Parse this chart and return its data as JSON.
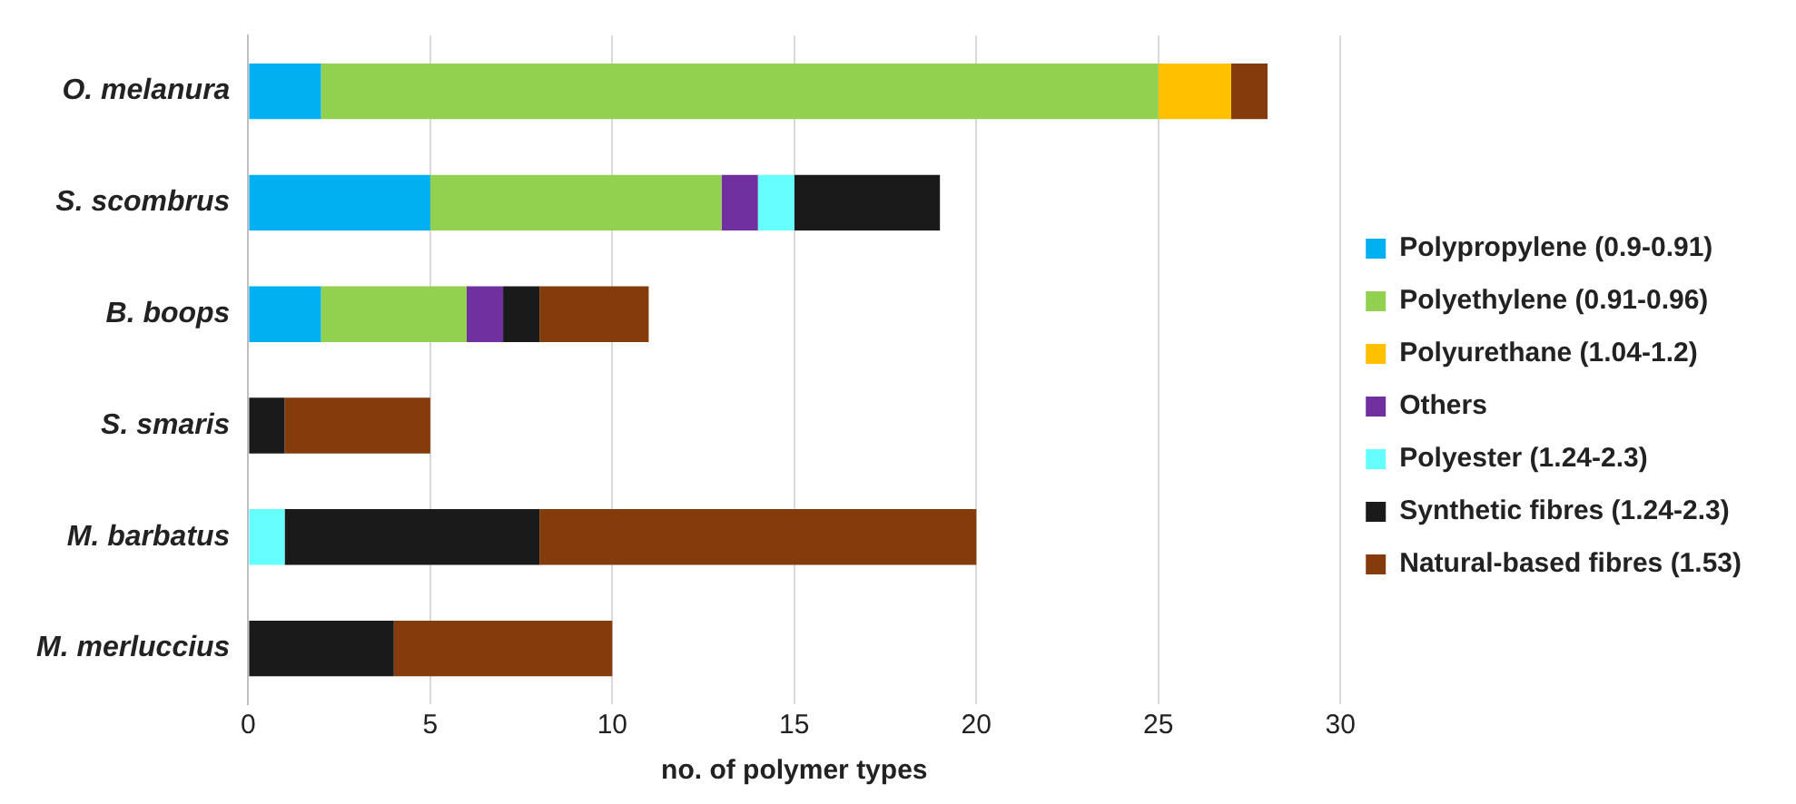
{
  "chart_data": {
    "type": "bar",
    "orientation": "horizontal",
    "stacked": true,
    "xlabel": "no. of polymer types",
    "categories": [
      "O. melanura",
      "S. scombrus",
      "B. boops",
      "S. smaris",
      "M. barbatus",
      "M. merluccius"
    ],
    "series": [
      {
        "name": "Polypropylene (0.9-0.91)",
        "color": "#00b0f0",
        "values": [
          2,
          5,
          2,
          0,
          0,
          0
        ]
      },
      {
        "name": "Polyethylene (0.91-0.96)",
        "color": "#92d050",
        "values": [
          23,
          8,
          4,
          0,
          0,
          0
        ]
      },
      {
        "name": "Polyurethane (1.04-1.2)",
        "color": "#ffc000",
        "values": [
          2,
          0,
          0,
          0,
          0,
          0
        ]
      },
      {
        "name": "Others",
        "color": "#7030a0",
        "values": [
          0,
          1,
          1,
          0,
          0,
          0
        ]
      },
      {
        "name": "Polyester (1.24-2.3)",
        "color": "#66ffff",
        "values": [
          0,
          1,
          0,
          0,
          1,
          0
        ]
      },
      {
        "name": "Synthetic fibres (1.24-2.3)",
        "color": "#1a1a1a",
        "values": [
          0,
          4,
          1,
          1,
          7,
          4
        ]
      },
      {
        "name": "Natural-based fibres (1.53)",
        "color": "#843c0c",
        "values": [
          1,
          0,
          3,
          4,
          12,
          6
        ]
      }
    ],
    "xlim": [
      0,
      30
    ],
    "xticks": [
      0,
      5,
      10,
      15,
      20,
      25,
      30
    ],
    "grid": "x",
    "legend": "right"
  }
}
